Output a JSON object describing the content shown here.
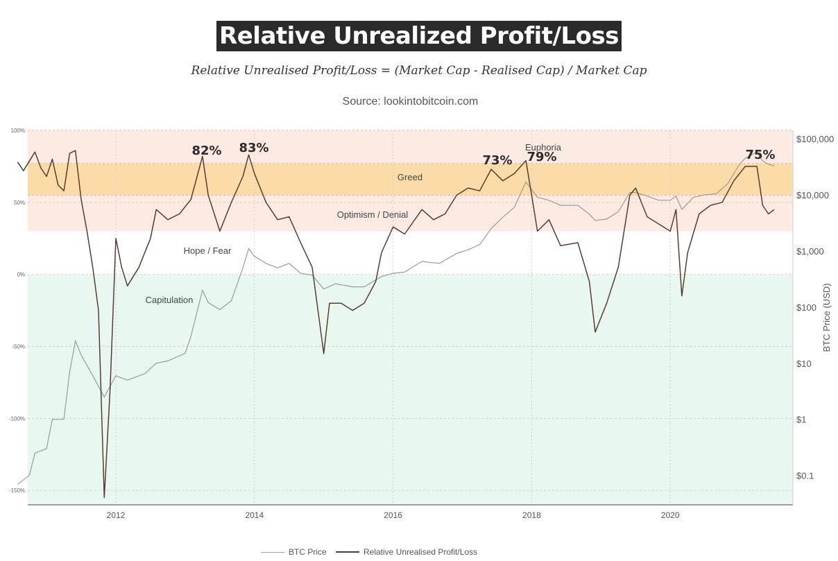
{
  "title": "Relative Unrealized Profit/Loss",
  "formula": "Relative Unrealised Profit/Loss = (Market Cap - Realised Cap) / Market Cap",
  "source": "Source: lookintobitcoin.com",
  "colors": {
    "euphoria_zone": "#fdebe3",
    "greed_zone": "#fbdca8",
    "optimism_zone": "#fdebe3",
    "hope_zone": "#ffffff",
    "capitulation_zone": "#e8f8f0",
    "nupl_line": "#5a3a30",
    "btc_line": "#9a9a9a"
  },
  "chart_data": {
    "type": "line",
    "x_axis": {
      "type": "date",
      "ticks": [
        "2012",
        "2014",
        "2016",
        "2018",
        "2020"
      ],
      "range": [
        "2010-08",
        "2021-07"
      ]
    },
    "y_left": {
      "label": "",
      "ticks": [
        "100%",
        "50%",
        "0%",
        "-50%",
        "-100%",
        "-150%"
      ],
      "range": [
        -1.6,
        1.0
      ]
    },
    "y_right": {
      "label": "BTC Price (USD)",
      "scale": "log",
      "ticks": [
        "$100,000",
        "$10,000",
        "$1,000",
        "$100",
        "$10",
        "$1",
        "$0.1"
      ],
      "range": [
        0.03,
        100000
      ]
    },
    "zones": [
      {
        "name": "Euphoria",
        "from": 0.77,
        "to": 1.0
      },
      {
        "name": "Greed",
        "from": 0.55,
        "to": 0.77
      },
      {
        "name": "Optimism / Denial",
        "from": 0.3,
        "to": 0.55
      },
      {
        "name": "Hope / Fear",
        "from": 0.0,
        "to": 0.3
      },
      {
        "name": "Capitulation",
        "from": -1.6,
        "to": 0.0
      }
    ],
    "peak_labels": [
      {
        "text": "82%",
        "date": "2013-04",
        "value": 0.82
      },
      {
        "text": "83%",
        "date": "2013-12",
        "value": 0.83
      },
      {
        "text": "73%",
        "date": "2017-06",
        "value": 0.73
      },
      {
        "text": "79%",
        "date": "2017-12",
        "value": 0.79
      },
      {
        "text": "75%",
        "date": "2021-04",
        "value": 0.75
      }
    ],
    "series": [
      {
        "name": "BTC Price",
        "axis": "right",
        "points": [
          [
            "2010-08",
            0.07
          ],
          [
            "2010-10",
            0.1
          ],
          [
            "2010-11",
            0.25
          ],
          [
            "2011-01",
            0.3
          ],
          [
            "2011-02",
            1.0
          ],
          [
            "2011-04",
            1.0
          ],
          [
            "2011-05",
            7
          ],
          [
            "2011-06",
            25
          ],
          [
            "2011-07",
            14
          ],
          [
            "2011-09",
            6
          ],
          [
            "2011-11",
            2.5
          ],
          [
            "2012-01",
            6
          ],
          [
            "2012-03",
            5
          ],
          [
            "2012-06",
            6.5
          ],
          [
            "2012-08",
            10
          ],
          [
            "2012-10",
            11
          ],
          [
            "2013-01",
            15
          ],
          [
            "2013-02",
            30
          ],
          [
            "2013-04",
            200
          ],
          [
            "2013-05",
            120
          ],
          [
            "2013-07",
            90
          ],
          [
            "2013-09",
            130
          ],
          [
            "2013-11",
            500
          ],
          [
            "2013-12",
            1100
          ],
          [
            "2014-01",
            800
          ],
          [
            "2014-03",
            600
          ],
          [
            "2014-05",
            500
          ],
          [
            "2014-07",
            600
          ],
          [
            "2014-09",
            400
          ],
          [
            "2014-11",
            370
          ],
          [
            "2015-01",
            210
          ],
          [
            "2015-03",
            260
          ],
          [
            "2015-06",
            230
          ],
          [
            "2015-08",
            230
          ],
          [
            "2015-11",
            350
          ],
          [
            "2016-01",
            400
          ],
          [
            "2016-03",
            420
          ],
          [
            "2016-06",
            650
          ],
          [
            "2016-09",
            600
          ],
          [
            "2016-12",
            900
          ],
          [
            "2017-02",
            1050
          ],
          [
            "2017-04",
            1300
          ],
          [
            "2017-06",
            2500
          ],
          [
            "2017-08",
            4000
          ],
          [
            "2017-10",
            6000
          ],
          [
            "2017-12",
            17000
          ],
          [
            "2018-02",
            9000
          ],
          [
            "2018-04",
            8000
          ],
          [
            "2018-06",
            6500
          ],
          [
            "2018-09",
            6500
          ],
          [
            "2018-11",
            4500
          ],
          [
            "2018-12",
            3500
          ],
          [
            "2019-02",
            3700
          ],
          [
            "2019-04",
            5000
          ],
          [
            "2019-06",
            11000
          ],
          [
            "2019-07",
            11000
          ],
          [
            "2019-09",
            9500
          ],
          [
            "2019-11",
            8000
          ],
          [
            "2020-01",
            8000
          ],
          [
            "2020-02",
            9500
          ],
          [
            "2020-03",
            5500
          ],
          [
            "2020-05",
            9000
          ],
          [
            "2020-07",
            10000
          ],
          [
            "2020-09",
            10500
          ],
          [
            "2020-11",
            16000
          ],
          [
            "2020-12",
            24000
          ],
          [
            "2021-01",
            35000
          ],
          [
            "2021-02",
            45000
          ],
          [
            "2021-04",
            58000
          ],
          [
            "2021-05",
            40000
          ],
          [
            "2021-06",
            35000
          ],
          [
            "2021-07",
            33000
          ]
        ]
      },
      {
        "name": "Relative Unrealised Profit/Loss",
        "axis": "left",
        "points": [
          [
            "2010-08",
            0.78
          ],
          [
            "2010-09",
            0.72
          ],
          [
            "2010-11",
            0.85
          ],
          [
            "2010-12",
            0.74
          ],
          [
            "2011-01",
            0.68
          ],
          [
            "2011-02",
            0.8
          ],
          [
            "2011-03",
            0.62
          ],
          [
            "2011-04",
            0.58
          ],
          [
            "2011-05",
            0.84
          ],
          [
            "2011-06",
            0.86
          ],
          [
            "2011-07",
            0.52
          ],
          [
            "2011-08",
            0.3
          ],
          [
            "2011-09",
            0.05
          ],
          [
            "2011-10",
            -0.25
          ],
          [
            "2011-11",
            -1.55
          ],
          [
            "2011-12",
            -0.8
          ],
          [
            "2012-01",
            0.25
          ],
          [
            "2012-02",
            0.05
          ],
          [
            "2012-03",
            -0.08
          ],
          [
            "2012-05",
            0.05
          ],
          [
            "2012-07",
            0.25
          ],
          [
            "2012-08",
            0.45
          ],
          [
            "2012-10",
            0.38
          ],
          [
            "2012-12",
            0.42
          ],
          [
            "2013-02",
            0.52
          ],
          [
            "2013-04",
            0.82
          ],
          [
            "2013-05",
            0.55
          ],
          [
            "2013-07",
            0.3
          ],
          [
            "2013-09",
            0.5
          ],
          [
            "2013-11",
            0.68
          ],
          [
            "2013-12",
            0.83
          ],
          [
            "2014-01",
            0.7
          ],
          [
            "2014-03",
            0.5
          ],
          [
            "2014-05",
            0.38
          ],
          [
            "2014-07",
            0.4
          ],
          [
            "2014-09",
            0.22
          ],
          [
            "2014-11",
            0.05
          ],
          [
            "2015-01",
            -0.55
          ],
          [
            "2015-02",
            -0.2
          ],
          [
            "2015-04",
            -0.2
          ],
          [
            "2015-06",
            -0.25
          ],
          [
            "2015-08",
            -0.2
          ],
          [
            "2015-10",
            -0.05
          ],
          [
            "2015-11",
            0.15
          ],
          [
            "2016-01",
            0.33
          ],
          [
            "2016-03",
            0.28
          ],
          [
            "2016-06",
            0.45
          ],
          [
            "2016-08",
            0.38
          ],
          [
            "2016-10",
            0.42
          ],
          [
            "2016-12",
            0.55
          ],
          [
            "2017-02",
            0.6
          ],
          [
            "2017-04",
            0.58
          ],
          [
            "2017-06",
            0.73
          ],
          [
            "2017-08",
            0.65
          ],
          [
            "2017-10",
            0.7
          ],
          [
            "2017-12",
            0.79
          ],
          [
            "2018-01",
            0.55
          ],
          [
            "2018-02",
            0.3
          ],
          [
            "2018-04",
            0.38
          ],
          [
            "2018-06",
            0.2
          ],
          [
            "2018-09",
            0.22
          ],
          [
            "2018-11",
            -0.05
          ],
          [
            "2018-12",
            -0.4
          ],
          [
            "2019-02",
            -0.2
          ],
          [
            "2019-04",
            0.05
          ],
          [
            "2019-06",
            0.55
          ],
          [
            "2019-07",
            0.6
          ],
          [
            "2019-09",
            0.4
          ],
          [
            "2019-11",
            0.35
          ],
          [
            "2020-01",
            0.3
          ],
          [
            "2020-02",
            0.45
          ],
          [
            "2020-03",
            -0.15
          ],
          [
            "2020-04",
            0.15
          ],
          [
            "2020-06",
            0.42
          ],
          [
            "2020-08",
            0.48
          ],
          [
            "2020-10",
            0.5
          ],
          [
            "2020-12",
            0.65
          ],
          [
            "2021-02",
            0.75
          ],
          [
            "2021-04",
            0.75
          ],
          [
            "2021-05",
            0.48
          ],
          [
            "2021-06",
            0.42
          ],
          [
            "2021-07",
            0.45
          ]
        ]
      }
    ]
  }
}
